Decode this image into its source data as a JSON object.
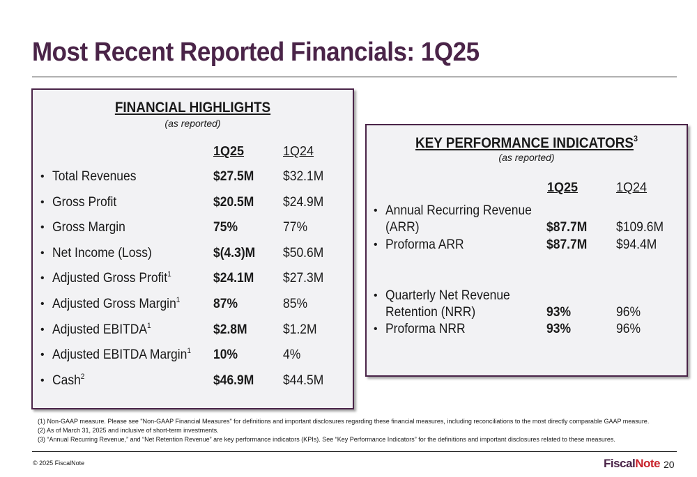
{
  "title": "Most Recent Reported Financials: 1Q25",
  "financial_highlights": {
    "heading": "FINANCIAL HIGHLIGHTS",
    "subheading": "(as reported)",
    "col1": "1Q25",
    "col2": "1Q24",
    "rows": [
      {
        "label": "Total Revenues",
        "sup": "",
        "v1": "$27.5M",
        "v2": "$32.1M"
      },
      {
        "label": "Gross Profit",
        "sup": "",
        "v1": "$20.5M",
        "v2": "$24.9M"
      },
      {
        "label": "Gross Margin",
        "sup": "",
        "v1": "75%",
        "v2": "77%"
      },
      {
        "label": "Net Income (Loss)",
        "sup": "",
        "v1": "$(4.3)M",
        "v2": "$50.6M"
      },
      {
        "label": "Adjusted Gross Profit",
        "sup": "1",
        "v1": "$24.1M",
        "v2": "$27.3M"
      },
      {
        "label": "Adjusted Gross Margin",
        "sup": "1",
        "v1": "87%",
        "v2": "85%"
      },
      {
        "label": "Adjusted EBITDA",
        "sup": "1",
        "v1": "$2.8M",
        "v2": "$1.2M"
      },
      {
        "label": "Adjusted EBITDA Margin",
        "sup": "1",
        "v1": "10%",
        "v2": "4%"
      },
      {
        "label": "Cash",
        "sup": "2",
        "v1": "$46.9M",
        "v2": "$44.5M"
      }
    ]
  },
  "kpi": {
    "heading": "KEY PERFORMANCE INDICATORS",
    "heading_sup": "3",
    "subheading": "(as reported)",
    "col1": "1Q25",
    "col2": "1Q24",
    "arr_label_line1": "Annual Recurring Revenue",
    "arr_label_line2": "(ARR)",
    "arr_v1": "$87.7M",
    "arr_v2": "$109.6M",
    "proforma_arr_label": "Proforma ARR",
    "proforma_arr_v1": "$87.7M",
    "proforma_arr_v2": "$94.4M",
    "nrr_label_line1": "Quarterly Net Revenue",
    "nrr_label_line2": "Retention (NRR)",
    "nrr_v1": "93%",
    "nrr_v2": "96%",
    "proforma_nrr_label": "Proforma NRR",
    "proforma_nrr_v1": "93%",
    "proforma_nrr_v2": "96%"
  },
  "footnotes": [
    "(1) Non-GAAP measure.  Please see \"Non-GAAP Financial Measures\" for definitions and important disclosures regarding these financial measures, including reconciliations to the most directly comparable GAAP measure.",
    "(2) As of March 31, 2025 and inclusive of short-term investments.",
    "(3) “Annual Recurring Revenue,” and “Net Retention Revenue” are key performance indicators (KPIs).  See “Key Performance Indicators” for the definitions and important disclosures related to these measures."
  ],
  "copyright": "© 2025 FiscalNote",
  "logo": {
    "part1": "Fiscal",
    "part2": "Note"
  },
  "page_number": "20",
  "colors": {
    "brand_purple": "#4a2448",
    "brand_red": "#c8232c",
    "panel_bg": "#f2f2f4"
  }
}
